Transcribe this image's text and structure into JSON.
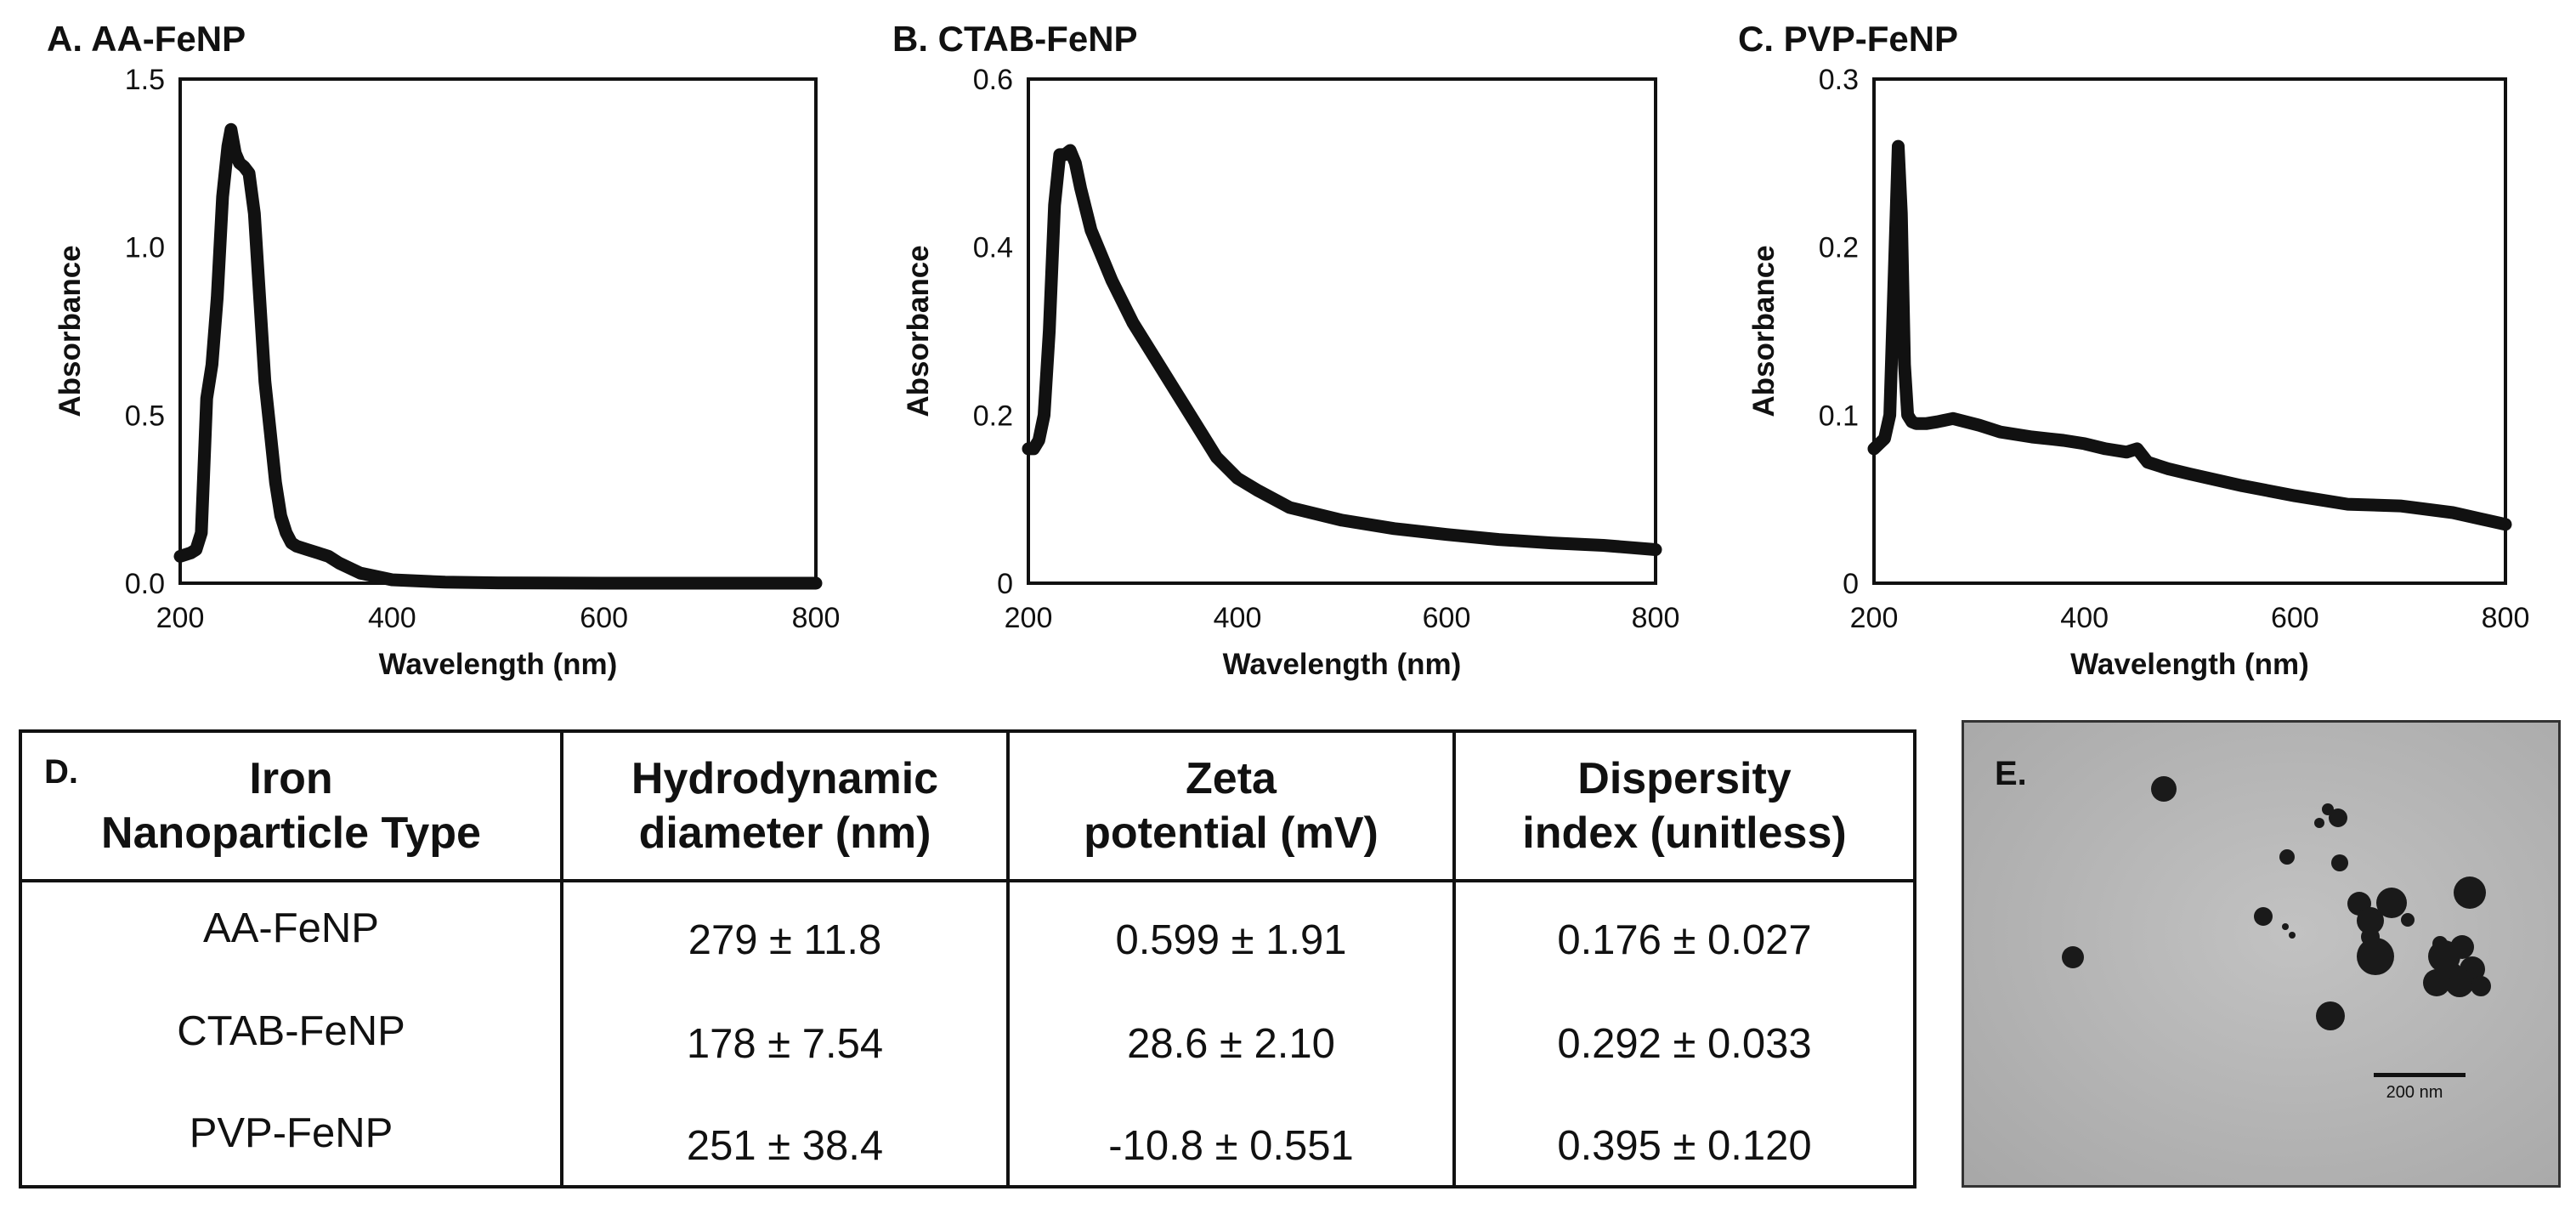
{
  "chart_data": [
    {
      "type": "line",
      "panel": "A. AA-FeNP",
      "title": "AA-FeNP",
      "xlabel": "Wavelength (nm)",
      "ylabel": "Absorbance",
      "xlim": [
        200,
        800
      ],
      "ylim": [
        0,
        1.5
      ],
      "xticks": [
        "200",
        "400",
        "600",
        "800"
      ],
      "yticks": [
        "0.0",
        "0.5",
        "1.0",
        "1.5"
      ],
      "x": [
        200,
        210,
        215,
        220,
        225,
        230,
        235,
        240,
        245,
        248,
        252,
        256,
        260,
        265,
        270,
        275,
        280,
        285,
        290,
        295,
        300,
        305,
        310,
        320,
        330,
        340,
        350,
        370,
        400,
        450,
        500,
        600,
        700,
        800
      ],
      "y": [
        0.08,
        0.09,
        0.1,
        0.15,
        0.55,
        0.65,
        0.85,
        1.15,
        1.3,
        1.35,
        1.28,
        1.25,
        1.24,
        1.22,
        1.1,
        0.85,
        0.6,
        0.45,
        0.3,
        0.2,
        0.15,
        0.12,
        0.11,
        0.1,
        0.09,
        0.08,
        0.06,
        0.03,
        0.01,
        0.003,
        0.001,
        0.0,
        0.0,
        0.0
      ]
    },
    {
      "type": "line",
      "panel": "B. CTAB-FeNP",
      "title": "CTAB-FeNP",
      "xlabel": "Wavelength (nm)",
      "ylabel": "Absorbance",
      "xlim": [
        200,
        800
      ],
      "ylim": [
        0,
        0.6
      ],
      "xticks": [
        "200",
        "400",
        "600",
        "800"
      ],
      "yticks": [
        "0",
        "0.2",
        "0.4",
        "0.6"
      ],
      "x": [
        200,
        205,
        210,
        215,
        220,
        225,
        230,
        235,
        240,
        245,
        250,
        260,
        280,
        300,
        320,
        340,
        360,
        380,
        400,
        420,
        450,
        500,
        550,
        600,
        650,
        700,
        750,
        800
      ],
      "y": [
        0.16,
        0.16,
        0.17,
        0.2,
        0.3,
        0.45,
        0.51,
        0.51,
        0.515,
        0.5,
        0.47,
        0.42,
        0.36,
        0.31,
        0.27,
        0.23,
        0.19,
        0.15,
        0.125,
        0.11,
        0.09,
        0.075,
        0.065,
        0.058,
        0.052,
        0.048,
        0.045,
        0.04
      ]
    },
    {
      "type": "line",
      "panel": "C. PVP-FeNP",
      "title": "PVP-FeNP",
      "xlabel": "Wavelength (nm)",
      "ylabel": "Absorbance",
      "xlim": [
        200,
        800
      ],
      "ylim": [
        0,
        0.3
      ],
      "xticks": [
        "200",
        "400",
        "600",
        "800"
      ],
      "yticks": [
        "0",
        "0.1",
        "0.2",
        "0.3"
      ],
      "x": [
        200,
        205,
        210,
        215,
        220,
        223,
        226,
        229,
        232,
        236,
        240,
        250,
        260,
        275,
        300,
        320,
        350,
        380,
        400,
        420,
        440,
        450,
        460,
        480,
        500,
        550,
        600,
        650,
        700,
        750,
        800
      ],
      "y": [
        0.08,
        0.083,
        0.086,
        0.1,
        0.2,
        0.26,
        0.22,
        0.13,
        0.1,
        0.096,
        0.095,
        0.095,
        0.096,
        0.098,
        0.094,
        0.09,
        0.087,
        0.085,
        0.083,
        0.08,
        0.078,
        0.08,
        0.072,
        0.068,
        0.065,
        0.058,
        0.052,
        0.047,
        0.046,
        0.042,
        0.035
      ]
    }
  ],
  "table": {
    "panel_label": "D.",
    "headers": [
      [
        "Iron",
        "Nanoparticle Type"
      ],
      [
        "Hydrodynamic",
        "diameter (nm)"
      ],
      [
        "Zeta",
        "potential (mV)"
      ],
      [
        "Dispersity",
        "index (unitless)"
      ]
    ],
    "rows": [
      [
        "AA-FeNP",
        "279 ± 11.8",
        "0.599 ± 1.91",
        "0.176 ± 0.027"
      ],
      [
        "CTAB-FeNP",
        "178 ± 7.54",
        "28.6 ± 2.10",
        "0.292 ± 0.033"
      ],
      [
        "PVP-FeNP",
        "251 ± 38.4",
        "-10.8 ± 0.551",
        "0.395 ± 0.120"
      ]
    ]
  },
  "image_panel": {
    "panel_label": "E.",
    "scale_bar_label": "200 nm"
  }
}
